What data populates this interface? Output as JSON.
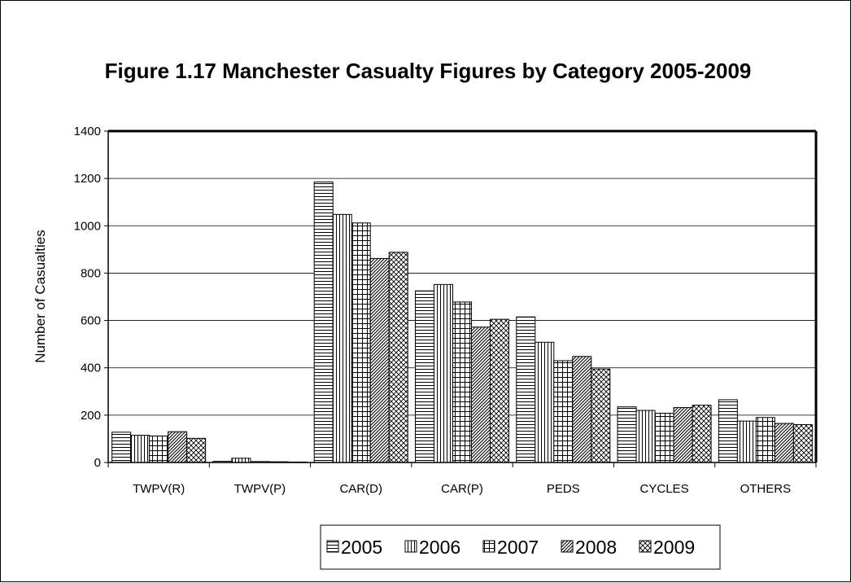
{
  "chart_data": {
    "type": "bar",
    "title": "Figure 1.17 Manchester Casualty Figures by Category 2005-2009",
    "xlabel": "",
    "ylabel": "Number of Casualties",
    "ylim": [
      0,
      1400
    ],
    "yticks": [
      0,
      200,
      400,
      600,
      800,
      1000,
      1200,
      1400
    ],
    "grid": true,
    "legend_position": "bottom",
    "categories": [
      "TWPV(R)",
      "TWPV(P)",
      "CAR(D)",
      "CAR(P)",
      "PEDS",
      "CYCLES",
      "OTHERS"
    ],
    "series": [
      {
        "name": "2005",
        "pattern": "horizontal",
        "values": [
          128,
          5,
          1185,
          725,
          615,
          235,
          265
        ]
      },
      {
        "name": "2006",
        "pattern": "vertical",
        "values": [
          115,
          18,
          1048,
          752,
          508,
          220,
          175
        ]
      },
      {
        "name": "2007",
        "pattern": "grid",
        "values": [
          112,
          4,
          1012,
          678,
          430,
          208,
          190
        ]
      },
      {
        "name": "2008",
        "pattern": "diagonal",
        "values": [
          130,
          3,
          862,
          572,
          448,
          232,
          165
        ]
      },
      {
        "name": "2009",
        "pattern": "crosshatch",
        "values": [
          102,
          2,
          888,
          605,
          395,
          242,
          160
        ]
      }
    ]
  }
}
